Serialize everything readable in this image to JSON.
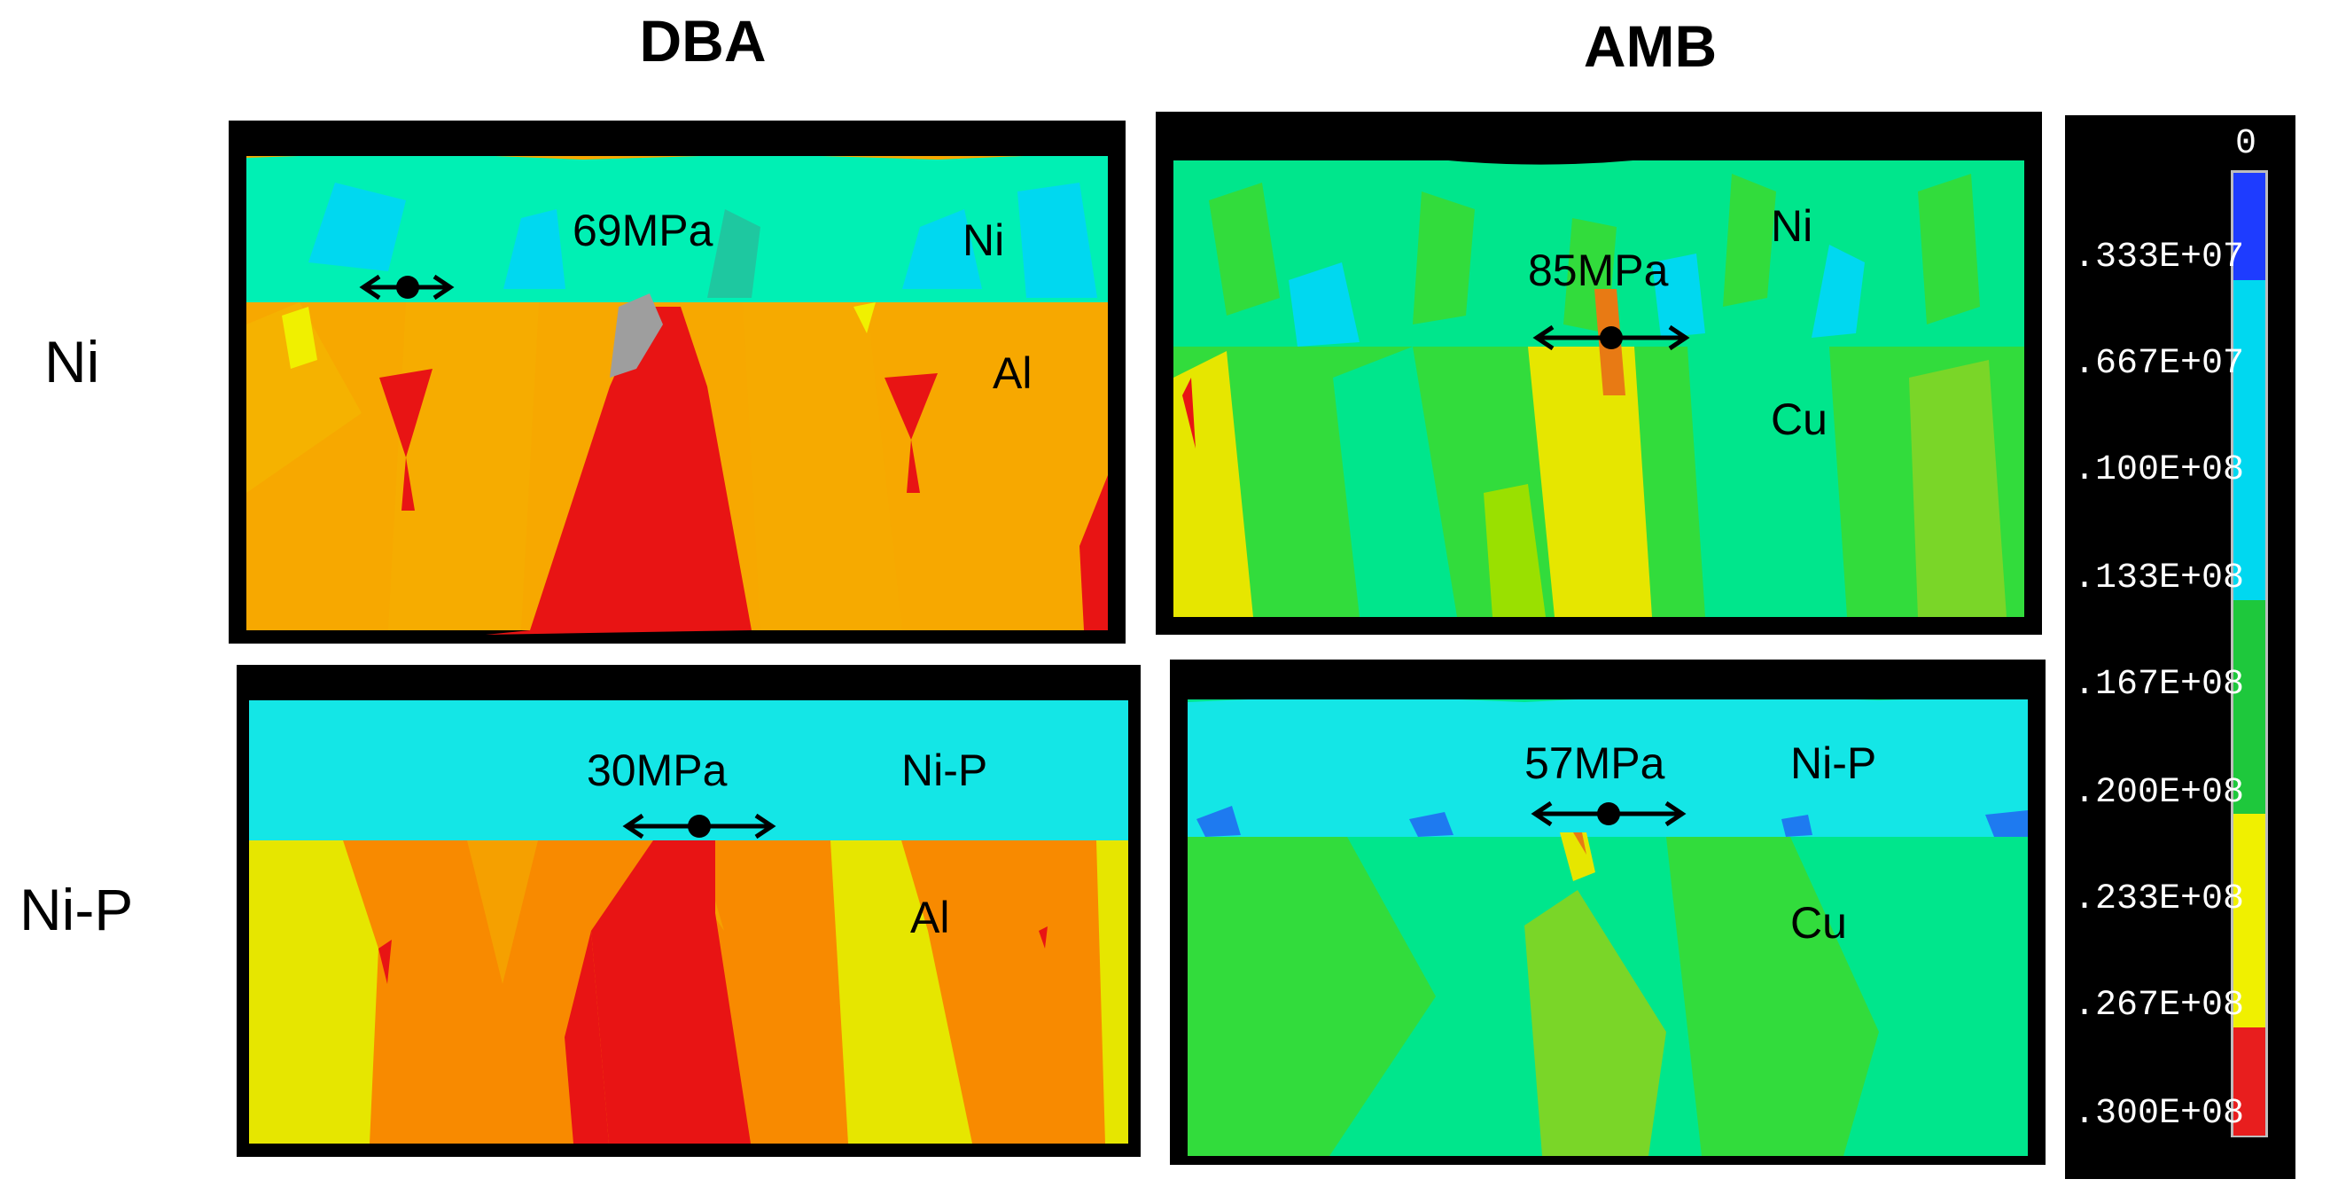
{
  "columns": {
    "dba": "DBA",
    "amb": "AMB"
  },
  "rows": {
    "ni": "Ni",
    "nip": "Ni-P"
  },
  "panels": {
    "dba_ni": {
      "stress": "69MPa",
      "top_layer": "Ni",
      "substrate": "Al"
    },
    "amb_ni": {
      "stress": "85MPa",
      "top_layer": "Ni",
      "substrate": "Cu"
    },
    "dba_nip": {
      "stress": "30MPa",
      "top_layer": "Ni-P",
      "substrate": "Al"
    },
    "amb_nip": {
      "stress": "57MPa",
      "top_layer": "Ni-P",
      "substrate": "Cu"
    }
  },
  "color_scale": {
    "ticks": [
      "0",
      ".333E+07",
      ".667E+07",
      ".100E+08",
      ".133E+08",
      ".167E+08",
      ".200E+08",
      ".233E+08",
      ".267E+08",
      ".300E+08"
    ],
    "colors": [
      "#1e3cff",
      "#00d8f0",
      "#00d8f0",
      "#00d8f0",
      "#1ec83c",
      "#1ec83c",
      "#f0f000",
      "#f0f000",
      "#e81e1e"
    ]
  },
  "palette": {
    "ni_layer": "#00f0b4",
    "nip_layer": "#14e6e6",
    "al_grain": "#f7a800",
    "al_grain_alt": "#f88a00",
    "hot": "#e81414",
    "cu_grain": "#32dc3c",
    "cu_grain_alt": "#00e68c",
    "yellow": "#e6e600"
  }
}
